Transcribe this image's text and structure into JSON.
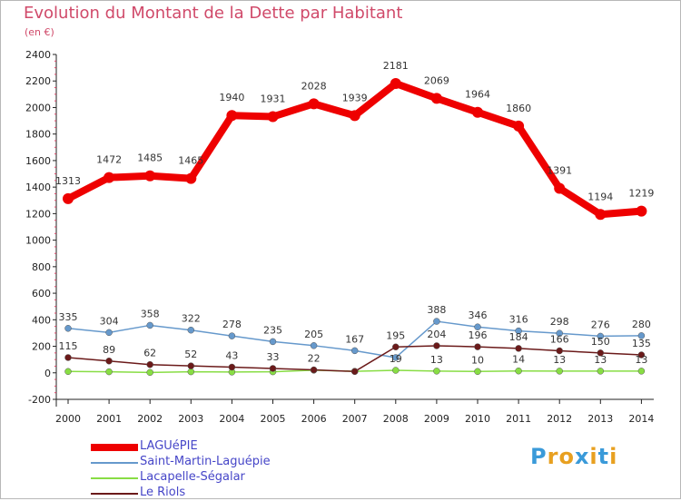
{
  "header": {
    "title": "Evolution du Montant de la Dette par Habitant",
    "subtitle": "(en €)"
  },
  "brand": {
    "letters": [
      "P",
      "r",
      "o",
      "x",
      "i",
      "t",
      "i"
    ],
    "colors": [
      "#3a9ad9",
      "#e8a020",
      "#e8a020",
      "#3a9ad9",
      "#e8a020",
      "#3a9ad9",
      "#e8a020"
    ]
  },
  "chart_data": {
    "type": "line",
    "title": "Evolution du Montant de la Dette par Habitant",
    "subtitle": "(en €)",
    "x": [
      "2000",
      "2001",
      "2002",
      "2003",
      "2004",
      "2005",
      "2006",
      "2007",
      "2008",
      "2009",
      "2010",
      "2011",
      "2012",
      "2013",
      "2014"
    ],
    "ylim": [
      -200,
      2400
    ],
    "yticks": [
      -200,
      0,
      200,
      400,
      600,
      800,
      1000,
      1200,
      1400,
      1600,
      1800,
      2000,
      2200,
      2400
    ],
    "grid": false,
    "legend": "bottom-left",
    "series": [
      {
        "name": "LAGUéPIE",
        "color": "#ee0000",
        "values": [
          1313,
          1472,
          1485,
          1465,
          1940,
          1931,
          2028,
          1939,
          2181,
          2069,
          1964,
          1860,
          1391,
          1194,
          1219
        ],
        "labels": [
          "1313",
          "1472",
          "1485",
          "1465",
          "1940",
          "1931",
          "2028",
          "1939",
          "2181",
          "2069",
          "1964",
          "1860",
          "1391",
          "1194",
          "1219"
        ]
      },
      {
        "name": "Saint-Martin-Laguépie",
        "color": "#6699cc",
        "values": [
          335,
          304,
          358,
          322,
          278,
          235,
          205,
          167,
          115,
          388,
          346,
          316,
          298,
          276,
          280
        ],
        "labels": [
          "335",
          "304",
          "358",
          "322",
          "278",
          "235",
          "205",
          "167",
          "",
          "388",
          "346",
          "316",
          "298",
          "276",
          "280"
        ]
      },
      {
        "name": "Lacapelle-Ségalar",
        "color": "#88dd44",
        "values": [
          10,
          8,
          3,
          8,
          6,
          8,
          20,
          11,
          19,
          13,
          10,
          14,
          13,
          13,
          13
        ],
        "labels": [
          "",
          "",
          "",
          "",
          "",
          "",
          "",
          "",
          "19",
          "13",
          "10",
          "14",
          "13",
          "13",
          "13"
        ]
      },
      {
        "name": "Le Riols",
        "color": "#6b1a1a",
        "values": [
          115,
          89,
          62,
          52,
          43,
          33,
          22,
          10,
          195,
          204,
          196,
          184,
          166,
          150,
          135
        ],
        "labels": [
          "115",
          "89",
          "62",
          "52",
          "43",
          "33",
          "22",
          "",
          "195",
          "204",
          "196",
          "184",
          "166",
          "150",
          "135"
        ]
      }
    ]
  }
}
